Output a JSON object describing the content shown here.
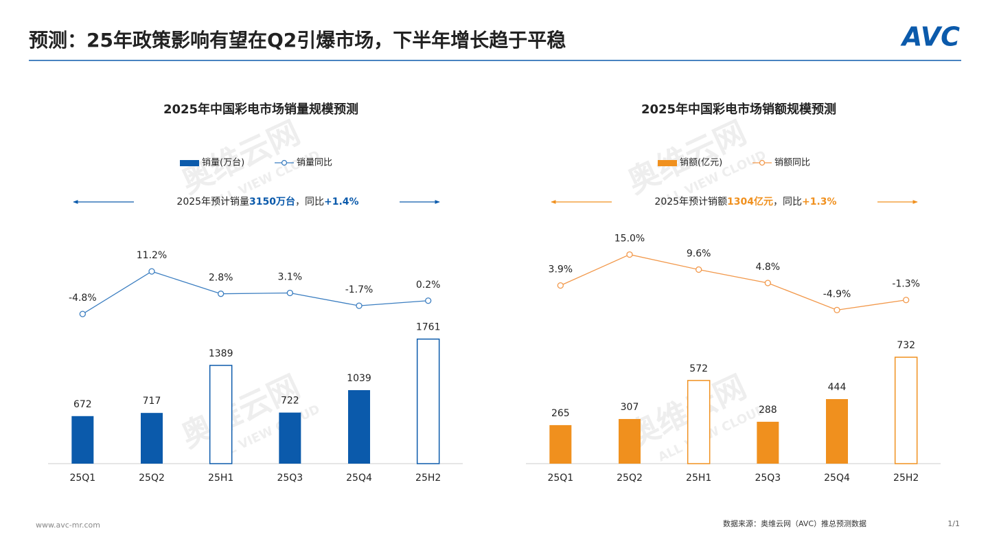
{
  "header": {
    "title": "预测：25年政策影响有望在Q2引爆市场，下半年增长趋于平稳",
    "logo": "AVC"
  },
  "chart_data": [
    {
      "type": "combo",
      "title": "2025年中国彩电市场销量规模预测",
      "annotation": [
        "2025年预计销量",
        "3150万台",
        "，同比",
        "+1.4%"
      ],
      "categories": [
        "25Q1",
        "25Q2",
        "25H1",
        "25Q3",
        "25Q4",
        "25H2"
      ],
      "series": [
        {
          "name": "销量(万台)",
          "type": "bar",
          "color": "#0b5aab",
          "values": [
            672,
            717,
            1389,
            722,
            1039,
            1761
          ],
          "outlined": [
            false,
            false,
            true,
            false,
            false,
            true
          ]
        },
        {
          "name": "销量同比",
          "type": "line",
          "axis": "y2",
          "color": "#3a7dc0",
          "values": [
            -4.8,
            11.2,
            2.8,
            3.1,
            -1.7,
            0.2
          ],
          "value_labels": [
            "-4.8%",
            "11.2%",
            "2.8%",
            "3.1%",
            "-1.7%",
            "0.2%"
          ]
        }
      ],
      "ylim": [
        0,
        3350
      ],
      "y2lim": [
        -61,
        28
      ]
    },
    {
      "type": "combo",
      "title": "2025年中国彩电市场销额规模预测",
      "annotation": [
        "2025年预计销额",
        "1304亿元",
        "，同比",
        "+1.3%"
      ],
      "categories": [
        "25Q1",
        "25Q2",
        "25H1",
        "25Q3",
        "25Q4",
        "25H2"
      ],
      "series": [
        {
          "name": "销额(亿元)",
          "type": "bar",
          "color": "#f0901e",
          "values": [
            265,
            307,
            572,
            288,
            444,
            732
          ],
          "outlined": [
            false,
            false,
            true,
            false,
            false,
            true
          ]
        },
        {
          "name": "销额同比",
          "type": "line",
          "axis": "y2",
          "color": "#f2984a",
          "values": [
            3.9,
            15.0,
            9.6,
            4.8,
            -4.9,
            -1.3
          ],
          "value_labels": [
            "3.9%",
            "15.0%",
            "9.6%",
            "4.8%",
            "-4.9%",
            "-1.3%"
          ]
        }
      ],
      "ylim": [
        0,
        1630
      ],
      "y2lim": [
        -60,
        25
      ]
    }
  ],
  "footer": {
    "website": "www.avc-mr.com",
    "source": "数据来源：奥维云网（AVC）推总预测数据",
    "page": "1/1"
  },
  "watermark": [
    "奥维云网",
    "ALL VIEW CLOUD"
  ]
}
